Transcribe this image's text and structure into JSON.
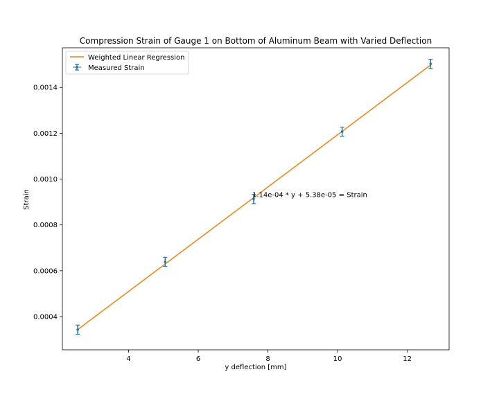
{
  "chart_data": {
    "type": "scatter",
    "title": "Compression Strain of Gauge 1 on Bottom of Aluminum Beam with Varied Deflection",
    "xlabel": "y deflection [mm]",
    "ylabel": "Strain",
    "xlim": [
      2.1,
      13.2
    ],
    "ylim": [
      0.000255,
      0.001573
    ],
    "x_ticks": [
      4,
      6,
      8,
      10,
      12
    ],
    "y_ticks": [
      0.0004,
      0.0006,
      0.0008,
      0.001,
      0.0012,
      0.0014
    ],
    "x_tick_labels": [
      "4",
      "6",
      "8",
      "10",
      "12"
    ],
    "y_tick_labels": [
      "0.0004",
      "0.0006",
      "0.0008",
      "0.0010",
      "0.0012",
      "0.0014"
    ],
    "grid": false,
    "legend_position": "top-left",
    "series": [
      {
        "name": "Measured Strain",
        "kind": "errorbar",
        "color": "#1f77b4",
        "points": [
          {
            "x": 2.54,
            "y": 0.000343,
            "yerr": 2e-05
          },
          {
            "x": 5.05,
            "y": 0.000639,
            "yerr": 2e-05
          },
          {
            "x": 7.59,
            "y": 0.000913,
            "yerr": 2e-05
          },
          {
            "x": 10.13,
            "y": 0.001207,
            "yerr": 2e-05
          },
          {
            "x": 12.67,
            "y": 0.001503,
            "yerr": 2e-05
          }
        ]
      },
      {
        "name": "Weighted Linear Regression",
        "kind": "line",
        "color": "#ff7f0e",
        "slope": 0.000114,
        "intercept": 5.38e-05,
        "x_range": [
          2.54,
          12.67
        ]
      }
    ],
    "annotations": [
      {
        "text": "1.14e-04 * y + 5.38e-05 = Strain",
        "x": 7.59,
        "y": 0.000913
      }
    ]
  }
}
